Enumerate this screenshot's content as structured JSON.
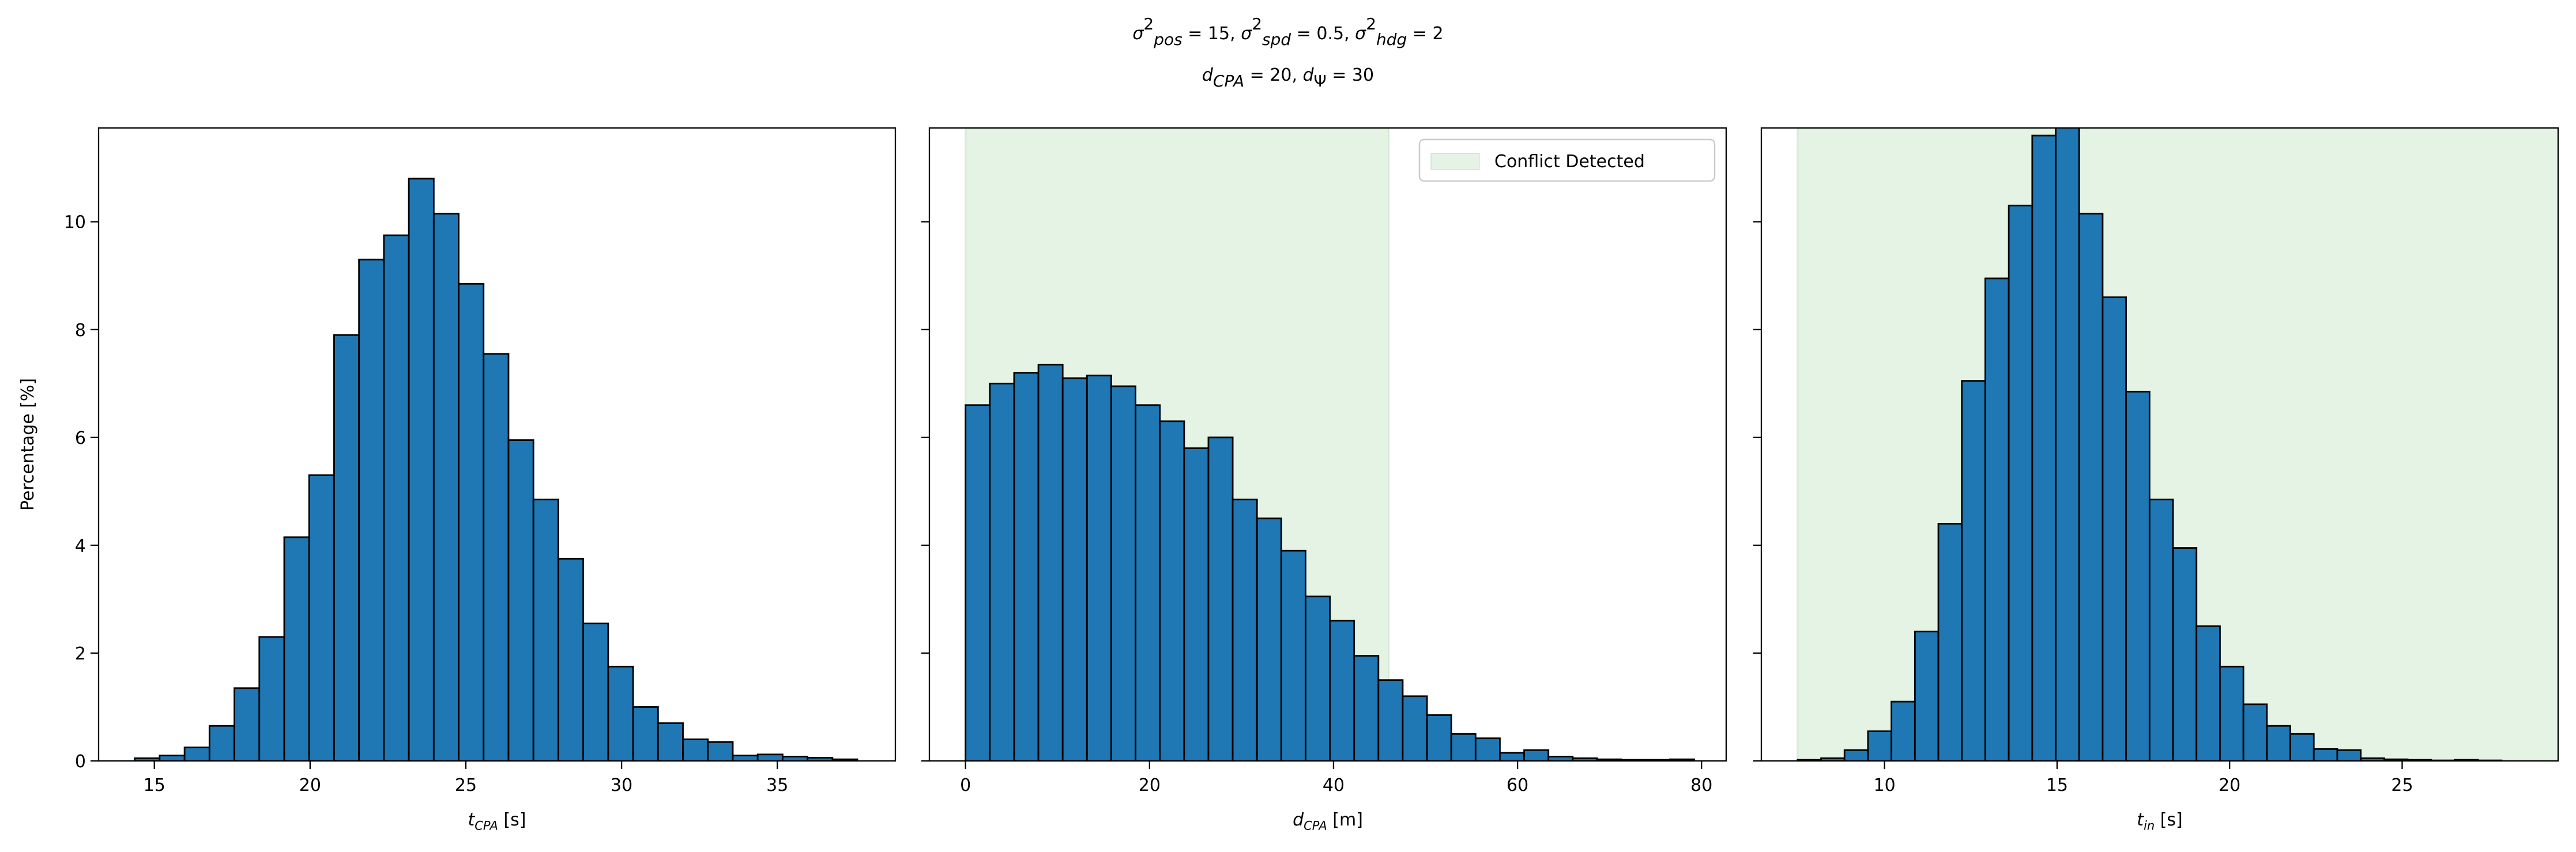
{
  "title_lines": [
    [
      {
        "text": "σ",
        "s": "it"
      },
      {
        "text": "2",
        "s": "sup"
      },
      {
        "text": "pos",
        "s": "sub-it"
      },
      {
        "text": " = 15, ",
        "s": "n"
      },
      {
        "text": "σ",
        "s": "it"
      },
      {
        "text": "2",
        "s": "sup"
      },
      {
        "text": "spd",
        "s": "sub-it"
      },
      {
        "text": " = 0.5, ",
        "s": "n"
      },
      {
        "text": "σ",
        "s": "it"
      },
      {
        "text": "2",
        "s": "sup"
      },
      {
        "text": "hdg",
        "s": "sub-it"
      },
      {
        "text": " = 2",
        "s": "n"
      }
    ],
    [
      {
        "text": "d",
        "s": "it"
      },
      {
        "text": "CPA",
        "s": "sub-it"
      },
      {
        "text": " = 20, ",
        "s": "n"
      },
      {
        "text": "d",
        "s": "it"
      },
      {
        "text": "Ψ",
        "s": "sub"
      },
      {
        "text": " = 30",
        "s": "n"
      }
    ]
  ],
  "chart_data": [
    {
      "type": "histogram",
      "color": "#1f77b4",
      "edgecolor": "#000000",
      "bins": [
        14.37,
        15.17,
        15.97,
        16.77,
        17.57,
        18.37,
        19.17,
        19.97,
        20.77,
        21.57,
        22.37,
        23.17,
        23.97,
        24.77,
        25.57,
        26.37,
        27.17,
        27.97,
        28.77,
        29.57,
        30.37,
        31.17,
        31.97,
        32.77,
        33.57,
        34.37,
        35.17,
        35.97,
        36.77,
        37.57
      ],
      "values": [
        0.05,
        0.1,
        0.25,
        0.65,
        1.35,
        2.3,
        4.15,
        5.3,
        7.9,
        9.3,
        9.75,
        10.8,
        10.15,
        8.85,
        7.55,
        5.95,
        4.85,
        3.75,
        2.55,
        1.75,
        1.0,
        0.7,
        0.4,
        0.35,
        0.1,
        0.12,
        0.08,
        0.06,
        0.03
      ],
      "xlim": [
        13.21,
        38.79
      ],
      "xticks": [
        15,
        20,
        25,
        30,
        35
      ],
      "ylim": [
        0,
        11.74
      ],
      "yticks": [
        0,
        2,
        4,
        6,
        8,
        10
      ],
      "ytick_labels": true,
      "xlabel": [
        {
          "text": "t",
          "s": "it"
        },
        {
          "text": "CPA",
          "s": "sub-it"
        },
        {
          "text": " [s]",
          "s": "n"
        }
      ],
      "ylabel": "Percentage [%]"
    },
    {
      "type": "histogram",
      "color": "#1f77b4",
      "edgecolor": "#000000",
      "bins": [
        0,
        2.64,
        5.28,
        7.92,
        10.56,
        13.2,
        15.84,
        18.48,
        21.12,
        23.76,
        26.4,
        29.04,
        31.68,
        34.32,
        36.96,
        39.6,
        42.24,
        44.88,
        47.52,
        50.16,
        52.8,
        55.44,
        58.08,
        60.72,
        63.36,
        66,
        68.64,
        71.28,
        73.92,
        76.56,
        79.2
      ],
      "values": [
        6.6,
        7.0,
        7.2,
        7.35,
        7.1,
        7.15,
        6.95,
        6.6,
        6.3,
        5.8,
        6.0,
        4.85,
        4.5,
        3.9,
        3.05,
        2.6,
        1.95,
        1.5,
        1.2,
        0.85,
        0.5,
        0.42,
        0.15,
        0.2,
        0.08,
        0.05,
        0.03,
        0.02,
        0.02,
        0.03
      ],
      "xlim": [
        -3.93,
        82.68
      ],
      "xticks": [
        0,
        20,
        40,
        60,
        80
      ],
      "ylim": [
        0,
        11.74
      ],
      "yticks": [
        0,
        2,
        4,
        6,
        8,
        10
      ],
      "ytick_labels": false,
      "xlabel": [
        {
          "text": "d",
          "s": "it"
        },
        {
          "text": "CPA",
          "s": "sub-it"
        },
        {
          "text": " [m]",
          "s": "n"
        }
      ],
      "span": {
        "x": [
          0,
          46
        ],
        "color": "#2ca02c",
        "label": "Conflict Detected"
      },
      "legend": "upper right"
    },
    {
      "type": "histogram",
      "color": "#1f77b4",
      "edgecolor": "#000000",
      "bins": [
        7.48,
        8.16,
        8.84,
        9.52,
        10.2,
        10.88,
        11.56,
        12.24,
        12.92,
        13.6,
        14.28,
        14.96,
        15.64,
        16.32,
        17.0,
        17.68,
        18.36,
        19.04,
        19.72,
        20.4,
        21.08,
        21.76,
        22.44,
        23.12,
        23.8,
        24.48,
        25.16,
        25.84,
        26.52,
        27.2,
        27.88
      ],
      "values": [
        0.02,
        0.05,
        0.2,
        0.55,
        1.1,
        2.4,
        4.4,
        7.05,
        8.95,
        10.3,
        11.6,
        11.9,
        10.15,
        8.6,
        6.85,
        4.85,
        3.95,
        2.5,
        1.75,
        1.05,
        0.65,
        0.5,
        0.22,
        0.2,
        0.05,
        0.03,
        0.02,
        0.01,
        0.02,
        0.01
      ],
      "xlim": [
        6.43,
        29.52
      ],
      "xticks": [
        10,
        15,
        20,
        25
      ],
      "ylim": [
        0,
        11.74
      ],
      "yticks": [
        0,
        2,
        4,
        6,
        8,
        10
      ],
      "ytick_labels": false,
      "xlabel": [
        {
          "text": "t",
          "s": "it"
        },
        {
          "text": "in",
          "s": "sub-it"
        },
        {
          "text": " [s]",
          "s": "n"
        }
      ],
      "span": {
        "x": [
          7.48,
          30
        ],
        "color": "#2ca02c"
      }
    }
  ]
}
